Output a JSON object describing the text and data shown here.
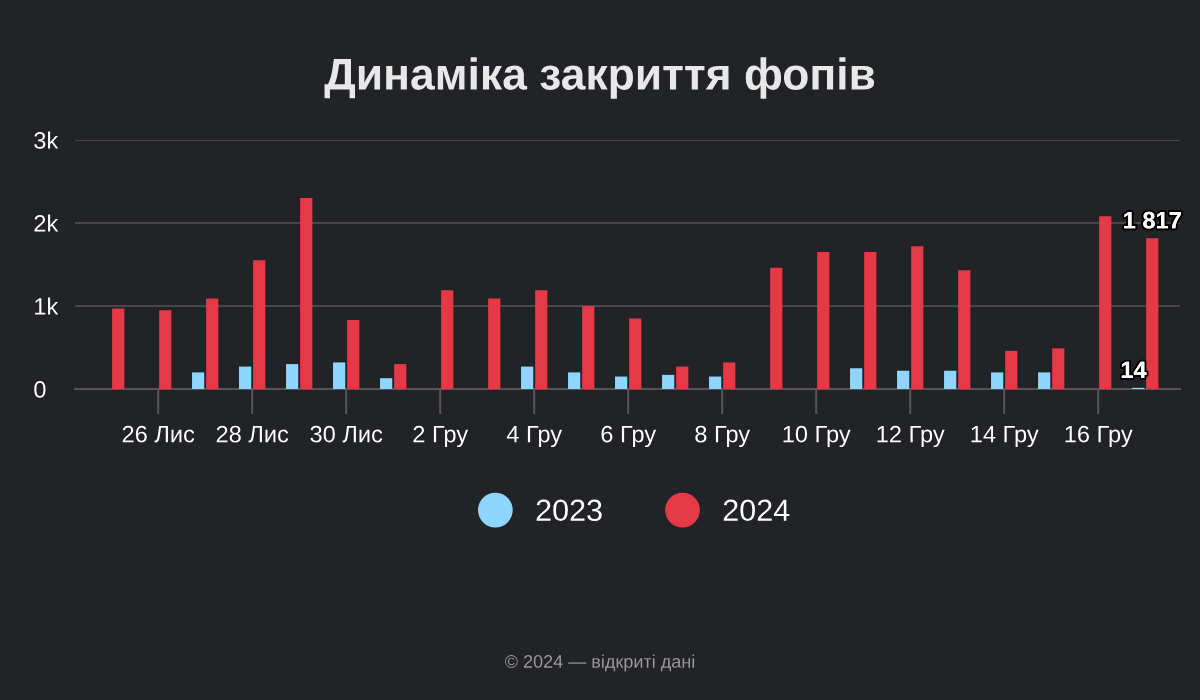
{
  "chart_data": {
    "type": "bar",
    "title": "Динаміка закриття фопів",
    "categories": [
      null,
      "26 Лис",
      null,
      "28 Лис",
      null,
      "30 Лис",
      null,
      "2 Гру",
      null,
      "4 Гру",
      null,
      "6 Гру",
      null,
      "8 Гру",
      null,
      "10 Гру",
      null,
      "12 Гру",
      null,
      "14 Гру",
      null,
      "16 Гру",
      null
    ],
    "series": [
      {
        "name": "2023",
        "color": "#8fd6ff",
        "values": [
          null,
          null,
          200,
          270,
          300,
          320,
          130,
          null,
          null,
          270,
          200,
          150,
          170,
          150,
          null,
          null,
          250,
          220,
          220,
          200,
          200,
          null,
          14
        ],
        "value_labels": [
          null,
          null,
          null,
          null,
          null,
          null,
          null,
          null,
          null,
          null,
          null,
          null,
          null,
          null,
          null,
          null,
          null,
          null,
          null,
          null,
          null,
          null,
          "14"
        ]
      },
      {
        "name": "2024",
        "color": "#e63946",
        "values": [
          970,
          950,
          1090,
          1550,
          2300,
          830,
          300,
          1190,
          1090,
          1190,
          1000,
          850,
          270,
          320,
          1460,
          1650,
          1650,
          1720,
          1430,
          460,
          490,
          2080,
          1817
        ],
        "value_labels": [
          null,
          null,
          null,
          null,
          null,
          null,
          null,
          null,
          null,
          null,
          null,
          null,
          null,
          null,
          null,
          null,
          null,
          null,
          null,
          null,
          null,
          null,
          "1 817"
        ]
      }
    ],
    "ylim": [
      0,
      3000
    ],
    "yticks": [
      {
        "value": 0,
        "label": "0"
      },
      {
        "value": 1000,
        "label": "1k"
      },
      {
        "value": 2000,
        "label": "2k"
      },
      {
        "value": 3000,
        "label": "3k"
      }
    ],
    "grid": "y",
    "legend": "bottom",
    "marker": "circle",
    "annotations": [
      "© 2024 — відкриті дані"
    ]
  }
}
